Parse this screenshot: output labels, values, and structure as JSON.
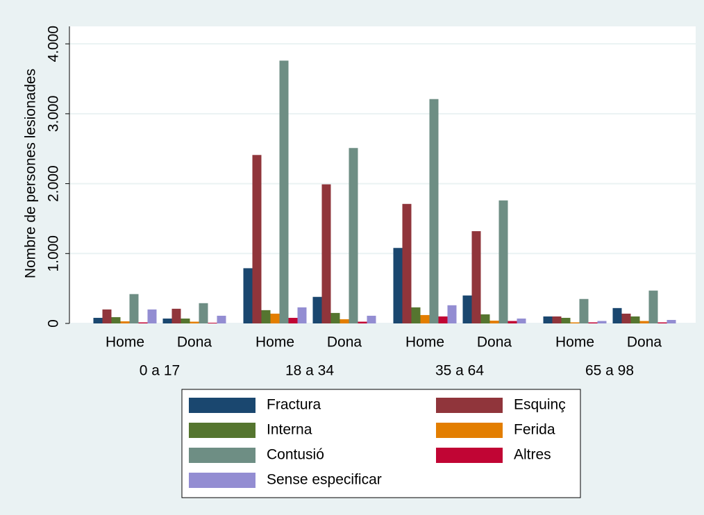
{
  "chart_data": {
    "type": "bar",
    "y_label": "Nombre de persones lesionades",
    "groups": [
      "0 a 17",
      "18 a 34",
      "35 a 64",
      "65 a 98"
    ],
    "categories": [
      "Home",
      "Dona",
      "Home",
      "Dona",
      "Home",
      "Dona",
      "Home",
      "Dona"
    ],
    "series": [
      {
        "name": "Fractura",
        "color": "#1a476f",
        "values": [
          80,
          70,
          790,
          380,
          1080,
          400,
          100,
          220
        ]
      },
      {
        "name": "Esquinç",
        "color": "#90353b",
        "values": [
          200,
          210,
          2410,
          1990,
          1710,
          1320,
          100,
          140
        ]
      },
      {
        "name": "Interna",
        "color": "#55752f",
        "values": [
          90,
          70,
          190,
          150,
          230,
          130,
          80,
          100
        ]
      },
      {
        "name": "Ferida",
        "color": "#e37e00",
        "values": [
          30,
          25,
          140,
          60,
          120,
          40,
          15,
          35
        ]
      },
      {
        "name": "Contusió",
        "color": "#6e8e84",
        "values": [
          420,
          290,
          3760,
          2510,
          3210,
          1760,
          350,
          470
        ]
      },
      {
        "name": "Altres",
        "color": "#c10534",
        "values": [
          15,
          10,
          80,
          25,
          100,
          35,
          15,
          15
        ]
      },
      {
        "name": "Sense especificar",
        "color": "#938dd2",
        "values": [
          200,
          110,
          230,
          110,
          260,
          70,
          35,
          50
        ]
      }
    ],
    "ylim": [
      0,
      4250
    ],
    "yticks": [
      0,
      {
        "value": 1000,
        "label": "1.000"
      },
      {
        "value": 2000,
        "label": "2.000"
      },
      {
        "value": 3000,
        "label": "3.000"
      },
      {
        "value": 4000,
        "label": "4.000"
      }
    ],
    "grid": true,
    "legend": "bottom"
  }
}
